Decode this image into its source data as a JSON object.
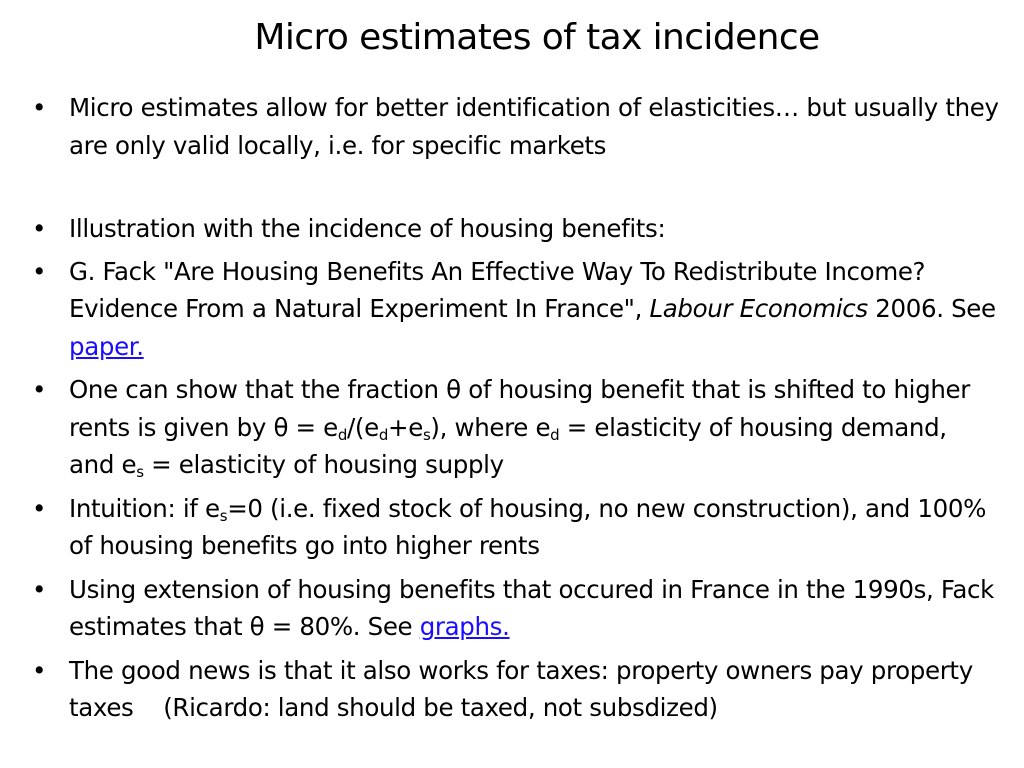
{
  "slide": {
    "title": "Micro estimates of tax incidence",
    "bullet_glyph": "•",
    "bullets": [
      {
        "text": "Micro estimates allow for better identification of elasticities… but usually they are only valid locally, i.e. for specific markets"
      },
      {
        "text": "Illustration with the incidence of housing benefits:"
      },
      {
        "part1": "G. Fack \"Are Housing Benefits An Effective Way To Redistribute Income? Evidence From a Natural Experiment In France\", ",
        "journal": "Labour Economics",
        "part2": " 2006. See ",
        "link": "paper."
      },
      {
        "p1": "One can show that the fraction θ of housing benefit that is shifted to higher rents is given by θ = e",
        "s1": "d",
        "p2": "/(e",
        "s2": "d",
        "p3": "+e",
        "s3": "s",
        "p4": "), where e",
        "s4": "d",
        "p5": " = elasticity of housing demand, and e",
        "s5": "s",
        "p6": " = elasticity of housing supply"
      },
      {
        "p1": "Intuition: if e",
        "s1": "s",
        "p2": "=0 (i.e. fixed stock of housing, no new construction), and 100% of housing benefits go into higher rents"
      },
      {
        "text": "Using extension of housing benefits that occured in France in the 1990s, Fack estimates that θ = 80%. See ",
        "link": "graphs."
      },
      {
        "text": "The good news is that it also works for taxes: property owners pay property taxes    (Ricardo: land should be taxed, not subsdized)"
      }
    ]
  },
  "colors": {
    "text": "#000000",
    "link": "#1a0dff",
    "background": "#ffffff"
  }
}
